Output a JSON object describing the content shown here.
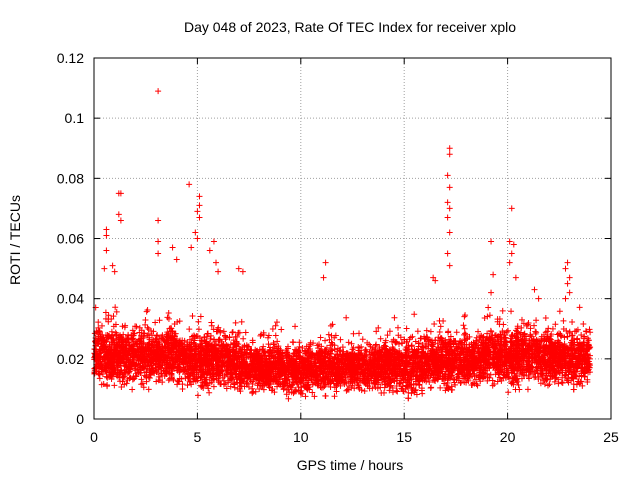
{
  "chart_data": {
    "type": "scatter",
    "title": "Day 048 of 2023, Rate Of TEC Index for receiver xplo",
    "xlabel": "GPS time / hours",
    "ylabel": "ROTI / TECUs",
    "xlim": [
      0,
      25
    ],
    "ylim": [
      0,
      0.12
    ],
    "x_ticks": [
      0,
      5,
      10,
      15,
      20,
      25
    ],
    "x_tick_labels": [
      "0",
      "5",
      "10",
      "15",
      "20",
      "25"
    ],
    "y_ticks": [
      0,
      0.02,
      0.04,
      0.06,
      0.08,
      0.1,
      0.12
    ],
    "y_tick_labels": [
      "0",
      "0.02",
      "0.04",
      "0.06",
      "0.08",
      "0.1",
      "0.12"
    ],
    "grid": true,
    "marker": "+",
    "marker_color": "#ff0000",
    "series": [
      {
        "name": "ROTI",
        "bands": [
          {
            "x_start": 0,
            "x_end": 4,
            "y_low": 0.008,
            "y_high": 0.034
          },
          {
            "x_start": 4,
            "x_end": 7,
            "y_low": 0.007,
            "y_high": 0.032
          },
          {
            "x_start": 7,
            "x_end": 14,
            "y_low": 0.006,
            "y_high": 0.028
          },
          {
            "x_start": 14,
            "x_end": 16,
            "y_low": 0.005,
            "y_high": 0.03
          },
          {
            "x_start": 16,
            "x_end": 19,
            "y_low": 0.007,
            "y_high": 0.032
          },
          {
            "x_start": 19,
            "x_end": 22,
            "y_low": 0.008,
            "y_high": 0.034
          },
          {
            "x_start": 22,
            "x_end": 24,
            "y_low": 0.008,
            "y_high": 0.032
          }
        ],
        "outliers": [
          [
            3.1,
            0.109
          ],
          [
            3.1,
            0.066
          ],
          [
            3.1,
            0.059
          ],
          [
            3.1,
            0.055
          ],
          [
            4.6,
            0.078
          ],
          [
            4.7,
            0.057
          ],
          [
            5.1,
            0.074
          ],
          [
            5.1,
            0.071
          ],
          [
            5.0,
            0.069
          ],
          [
            5.1,
            0.067
          ],
          [
            4.9,
            0.062
          ],
          [
            5.0,
            0.06
          ],
          [
            1.2,
            0.075
          ],
          [
            1.3,
            0.075
          ],
          [
            1.2,
            0.068
          ],
          [
            1.3,
            0.066
          ],
          [
            0.6,
            0.063
          ],
          [
            0.6,
            0.061
          ],
          [
            0.6,
            0.056
          ],
          [
            0.5,
            0.05
          ],
          [
            0.9,
            0.051
          ],
          [
            1.0,
            0.049
          ],
          [
            3.8,
            0.057
          ],
          [
            4.0,
            0.053
          ],
          [
            5.8,
            0.059
          ],
          [
            5.6,
            0.056
          ],
          [
            5.9,
            0.052
          ],
          [
            6.0,
            0.049
          ],
          [
            7.0,
            0.05
          ],
          [
            7.2,
            0.049
          ],
          [
            11.2,
            0.052
          ],
          [
            11.1,
            0.047
          ],
          [
            17.2,
            0.09
          ],
          [
            17.2,
            0.088
          ],
          [
            17.1,
            0.081
          ],
          [
            17.2,
            0.077
          ],
          [
            17.1,
            0.072
          ],
          [
            17.2,
            0.07
          ],
          [
            17.1,
            0.067
          ],
          [
            17.2,
            0.062
          ],
          [
            17.1,
            0.055
          ],
          [
            17.2,
            0.051
          ],
          [
            16.4,
            0.047
          ],
          [
            16.5,
            0.046
          ],
          [
            19.2,
            0.059
          ],
          [
            19.3,
            0.048
          ],
          [
            19.2,
            0.042
          ],
          [
            20.2,
            0.07
          ],
          [
            20.1,
            0.059
          ],
          [
            20.3,
            0.058
          ],
          [
            20.2,
            0.055
          ],
          [
            20.1,
            0.052
          ],
          [
            20.4,
            0.047
          ],
          [
            21.3,
            0.043
          ],
          [
            21.5,
            0.04
          ],
          [
            22.9,
            0.052
          ],
          [
            22.8,
            0.05
          ],
          [
            23.0,
            0.047
          ],
          [
            22.9,
            0.045
          ],
          [
            23.0,
            0.042
          ],
          [
            22.8,
            0.04
          ]
        ]
      }
    ]
  }
}
